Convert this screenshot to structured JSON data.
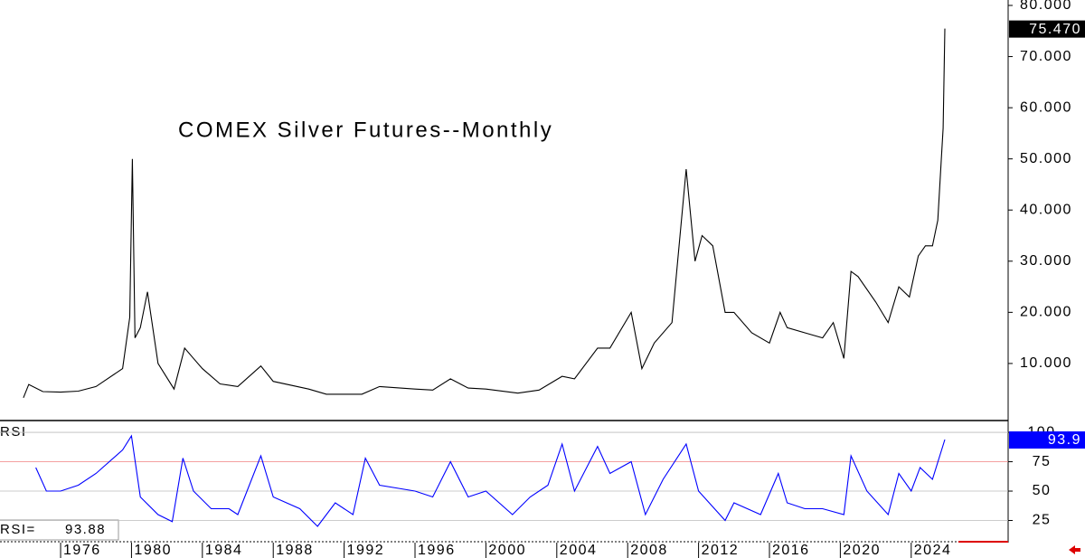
{
  "chart_data": [
    {
      "type": "line",
      "title": "COMEX Silver Futures--Monthly",
      "color": "#000000",
      "xlim": [
        1972.58,
        2029.47
      ],
      "ylim": [
        -0.8,
        81.06
      ],
      "yticks": [
        {
          "value": 10,
          "label": "10.000"
        },
        {
          "value": 20,
          "label": "20.000"
        },
        {
          "value": 30,
          "label": "30.000"
        },
        {
          "value": 40,
          "label": "40.000"
        },
        {
          "value": 50,
          "label": "50.000"
        },
        {
          "value": 60,
          "label": "60.000"
        },
        {
          "value": 70,
          "label": "70.000"
        },
        {
          "value": 80,
          "label": "80.000"
        }
      ],
      "last_label": "75.470",
      "x": [
        1973.9,
        1974.2,
        1975.0,
        1976.0,
        1977.0,
        1978.0,
        1979.5,
        1979.9,
        1980.05,
        1980.2,
        1980.5,
        1980.9,
        1981.5,
        1982.4,
        1983.0,
        1983.5,
        1984.0,
        1985.0,
        1986.0,
        1987.3,
        1988.0,
        1990.0,
        1991.0,
        1993.0,
        1994.0,
        1996.0,
        1997.0,
        1998.0,
        1999.0,
        2000.0,
        2001.8,
        2003.0,
        2004.3,
        2005.0,
        2006.3,
        2007.0,
        2008.2,
        2008.8,
        2009.5,
        2010.5,
        2011.3,
        2011.8,
        2012.2,
        2012.8,
        2013.5,
        2014.0,
        2015.0,
        2016.0,
        2016.6,
        2017.0,
        2018.0,
        2019.0,
        2019.6,
        2020.2,
        2020.6,
        2021.0,
        2022.0,
        2022.7,
        2023.3,
        2023.9,
        2024.4,
        2024.8,
        2025.2,
        2025.5,
        2025.7,
        2025.8,
        2025.9
      ],
      "values": [
        3.3,
        5.9,
        4.5,
        4.4,
        4.6,
        5.5,
        9,
        19,
        50,
        15,
        17,
        24,
        10,
        5,
        13,
        11,
        9,
        6,
        5.5,
        9.5,
        6.5,
        5,
        4,
        4,
        5.5,
        5,
        4.8,
        7,
        5.2,
        5,
        4.2,
        4.8,
        7.5,
        7,
        13,
        13,
        20,
        9,
        14,
        18,
        48,
        30,
        35,
        33,
        20,
        20,
        16,
        14,
        20,
        17,
        16,
        15,
        18,
        11,
        28,
        27,
        22,
        18,
        25,
        23,
        31,
        33,
        33,
        38,
        50,
        56,
        75.47
      ]
    },
    {
      "type": "line",
      "title": "RSI",
      "color": "#0000ff",
      "xlim": [
        1972.58,
        2029.47
      ],
      "ylim": [
        7.7,
        108.5
      ],
      "xticks": [
        1976,
        1980,
        1984,
        1988,
        1992,
        1996,
        2000,
        2004,
        2008,
        2012,
        2016,
        2020,
        2024
      ],
      "yticks": [
        25,
        50,
        75,
        100
      ],
      "last_label": "93.9",
      "readout_label": "RSI=",
      "readout": "93.88",
      "x": [
        1974.6,
        1975.2,
        1976.0,
        1977.0,
        1978.0,
        1979.5,
        1980.0,
        1980.5,
        1981.5,
        1982.3,
        1982.9,
        1983.5,
        1984.5,
        1985.5,
        1986.0,
        1987.3,
        1988.0,
        1989.5,
        1990.5,
        1991.5,
        1992.5,
        1993.2,
        1994.0,
        1996.0,
        1997.0,
        1998.0,
        1999.0,
        2000.0,
        2001.5,
        2002.5,
        2003.5,
        2004.3,
        2005.0,
        2006.3,
        2007.0,
        2008.2,
        2009.0,
        2010.0,
        2011.3,
        2012.0,
        2013.5,
        2014.0,
        2015.5,
        2016.5,
        2017.0,
        2018.0,
        2019.0,
        2020.2,
        2020.6,
        2021.5,
        2022.7,
        2023.3,
        2024.0,
        2024.5,
        2025.2,
        2025.9
      ],
      "values": [
        70,
        50,
        50,
        55,
        65,
        85,
        97,
        45,
        30,
        24,
        78,
        50,
        35,
        35,
        30,
        80,
        45,
        35,
        20,
        40,
        30,
        78,
        55,
        50,
        45,
        75,
        45,
        50,
        30,
        45,
        55,
        90,
        50,
        88,
        65,
        75,
        30,
        60,
        90,
        50,
        25,
        40,
        30,
        65,
        40,
        35,
        35,
        30,
        80,
        50,
        30,
        65,
        50,
        70,
        60,
        93.88
      ]
    }
  ]
}
